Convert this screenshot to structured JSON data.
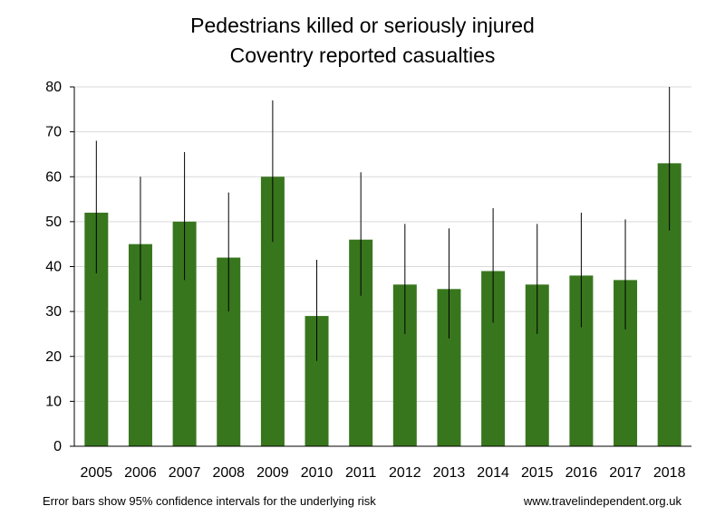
{
  "chart_data": {
    "type": "bar",
    "title": [
      "Pedestrians killed or seriously injured",
      "Coventry reported casualties"
    ],
    "xlabel": "",
    "ylabel": "",
    "categories": [
      "2005",
      "2006",
      "2007",
      "2008",
      "2009",
      "2010",
      "2011",
      "2012",
      "2013",
      "2014",
      "2015",
      "2016",
      "2017",
      "2018"
    ],
    "values": [
      52,
      45,
      50,
      42,
      60,
      29,
      46,
      36,
      35,
      39,
      36,
      38,
      37,
      63
    ],
    "error_low": [
      38.5,
      32.5,
      37,
      30,
      45.5,
      19,
      33.5,
      25,
      24,
      27.5,
      25,
      26.5,
      26,
      48
    ],
    "error_high": [
      68,
      60,
      65.5,
      56.5,
      77,
      41.5,
      61,
      49.5,
      48.5,
      53,
      49.5,
      52,
      50.5,
      80
    ],
    "ylim": [
      0,
      80
    ],
    "yticks": [
      0,
      10,
      20,
      30,
      40,
      50,
      60,
      70,
      80
    ],
    "grid": true,
    "bar_color": "#38761d",
    "error_bar_color": "#000000",
    "grid_color": "#d9d9d9"
  },
  "footer": {
    "note": "Error bars show 95% confidence intervals for the underlying risk",
    "source": "www.travelindependent.org.uk"
  }
}
